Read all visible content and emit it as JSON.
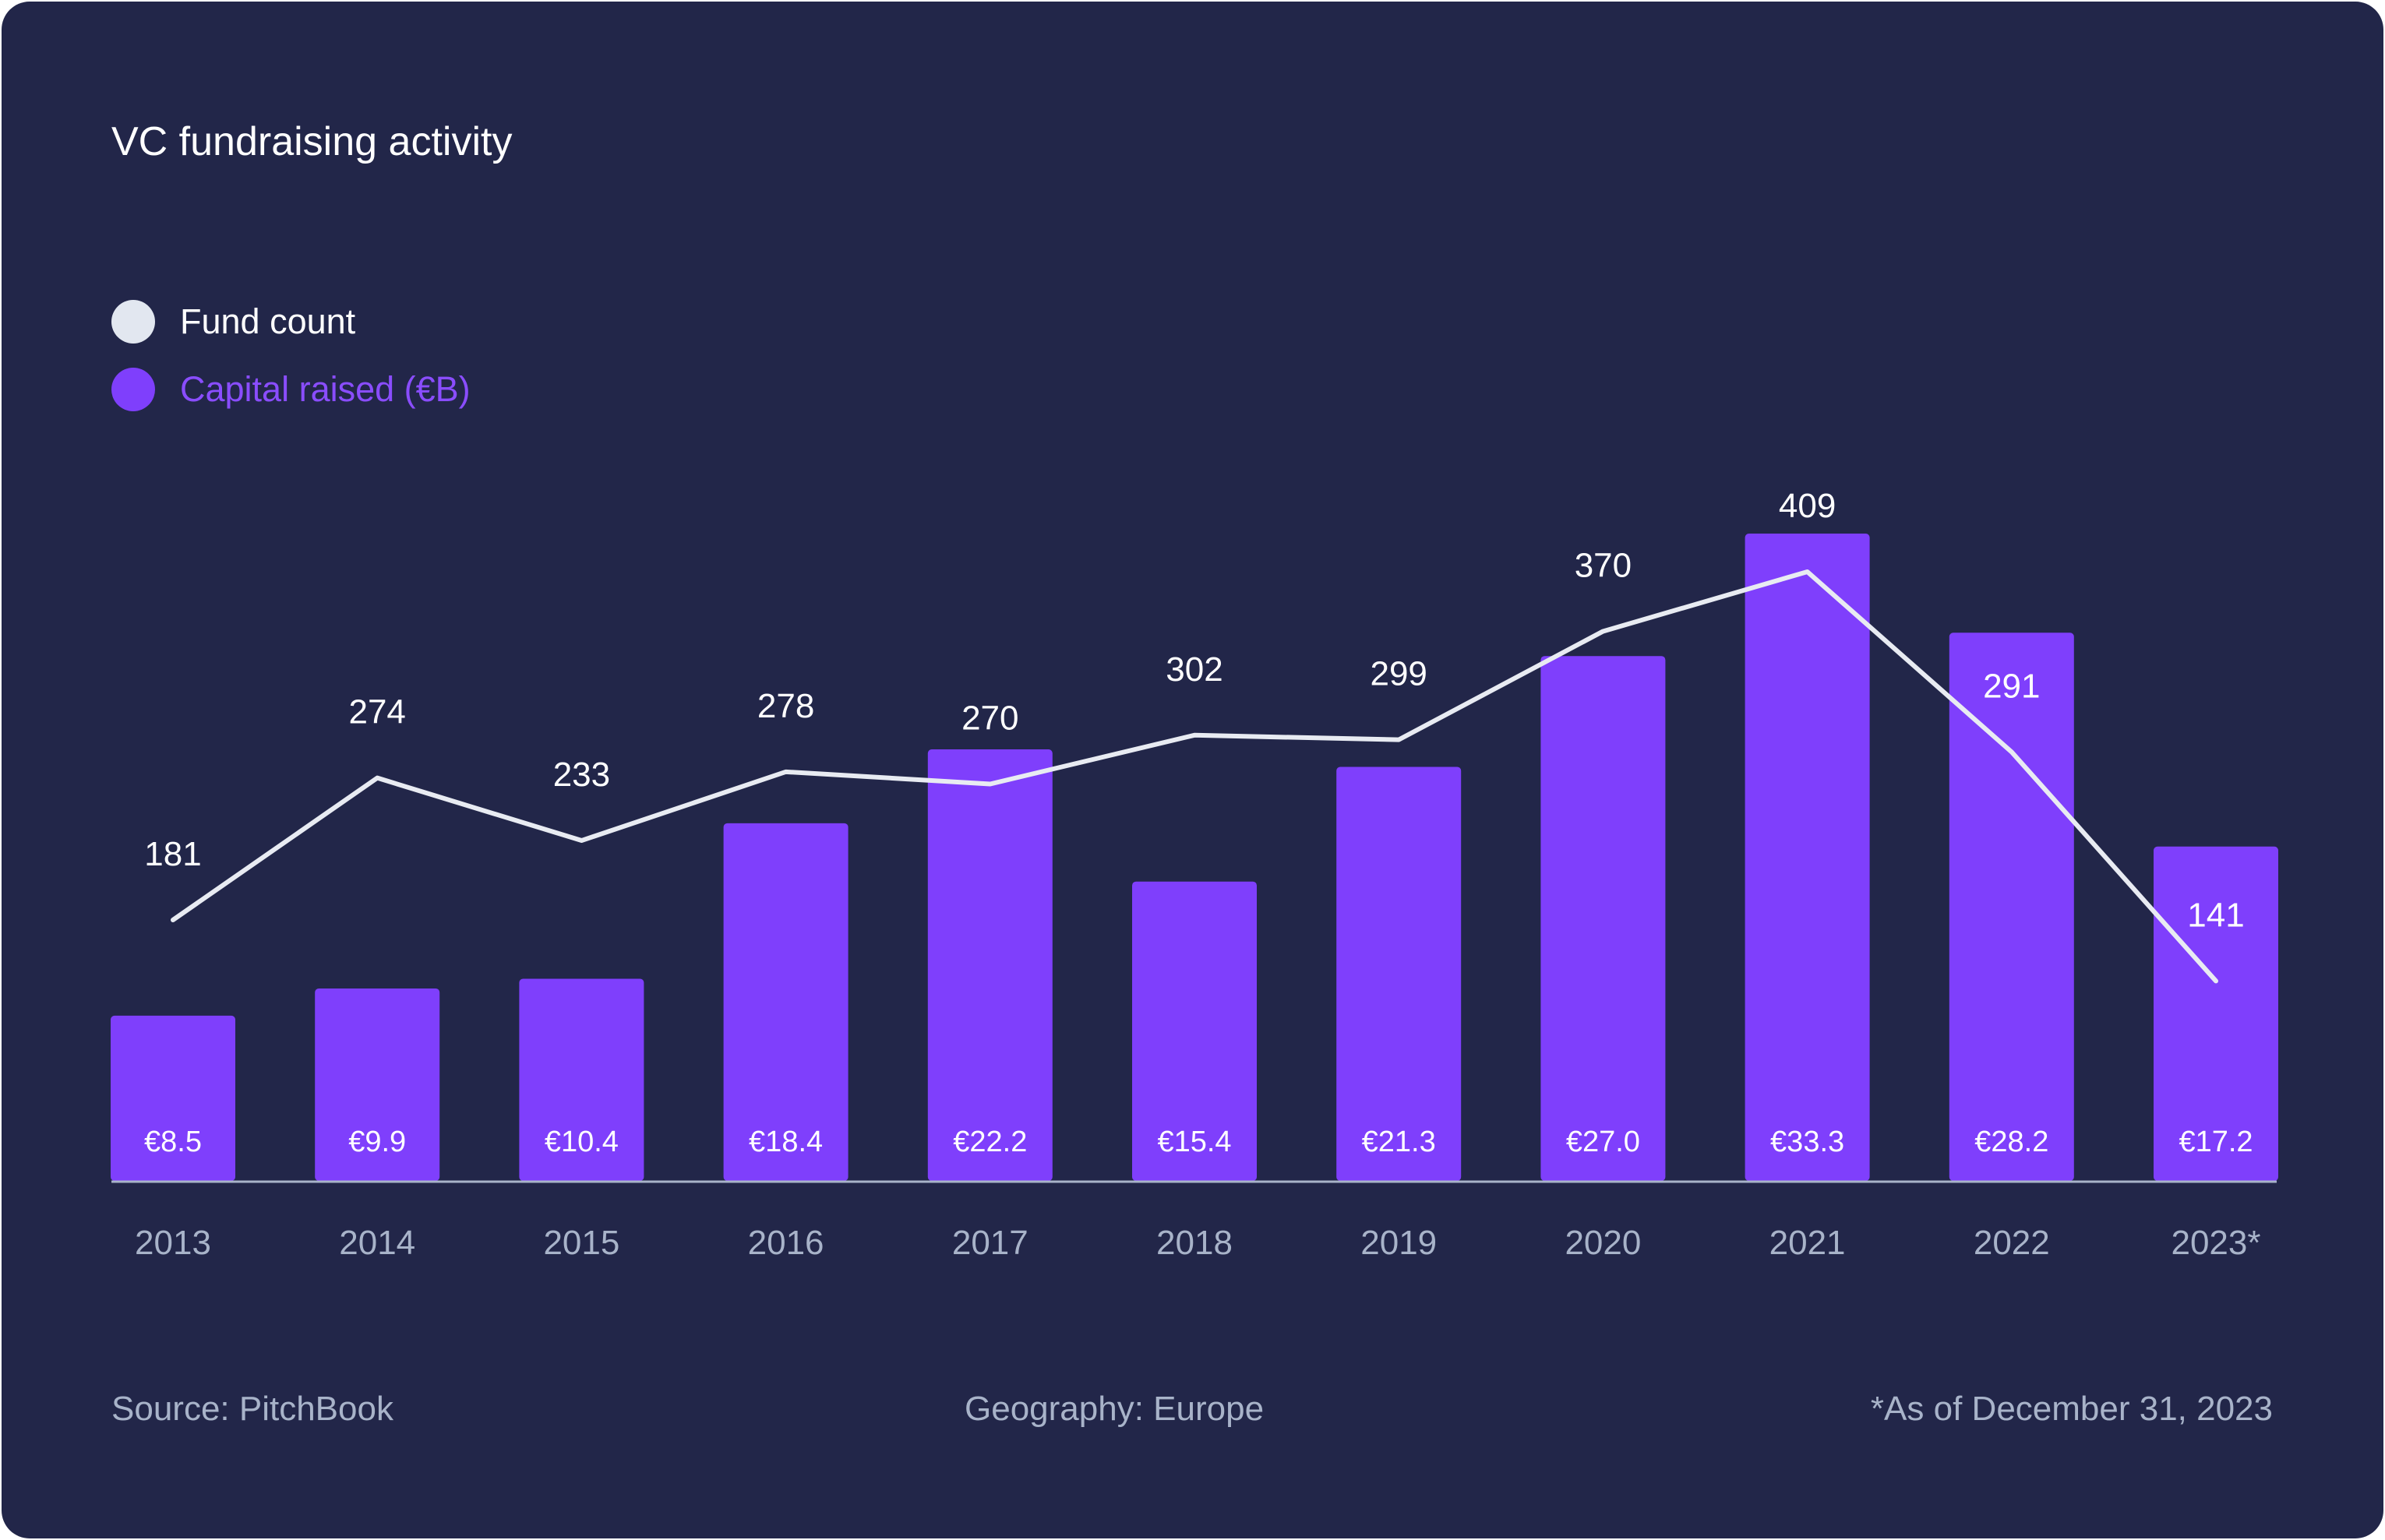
{
  "colors": {
    "background": "#222649",
    "bar": "#7f3ffc",
    "line": "#e8ebf2",
    "axis": "#a8b3c9",
    "footer_text": "#a8b3c9",
    "fund_count_legend": "#e2e7f0",
    "capital_legend": "#7f3ffc"
  },
  "chart_data": {
    "type": "bar",
    "title": "VC fundraising activity",
    "categories": [
      "2013",
      "2014",
      "2015",
      "2016",
      "2017",
      "2018",
      "2019",
      "2020",
      "2021",
      "2022",
      "2023*"
    ],
    "series": [
      {
        "name": "Capital raised (€B)",
        "type": "bar",
        "values": [
          8.5,
          9.9,
          10.4,
          18.4,
          22.2,
          15.4,
          21.3,
          27.0,
          33.3,
          28.2,
          17.2
        ],
        "labels": [
          "€8.5",
          "€9.9",
          "€10.4",
          "€18.4",
          "€22.2",
          "€15.4",
          "€21.3",
          "€27.0",
          "€33.3",
          "€28.2",
          "€17.2"
        ],
        "color": "#7f3ffc"
      },
      {
        "name": "Fund count",
        "type": "line",
        "values": [
          181,
          274,
          233,
          278,
          270,
          302,
          299,
          370,
          409,
          291,
          141
        ],
        "labels": [
          "181",
          "274",
          "233",
          "278",
          "270",
          "302",
          "299",
          "370",
          "409",
          "291",
          "141"
        ],
        "color": "#e8ebf2"
      }
    ],
    "bar_ylim": [
      0,
      36
    ],
    "line_ylim": [
      0,
      500
    ],
    "grid": false,
    "legend_position": "top-left"
  },
  "legend": [
    {
      "label": "Fund count",
      "color": "#e2e7f0"
    },
    {
      "label": "Capital raised (€B)",
      "color": "#7f3ffc"
    }
  ],
  "footer": {
    "source": "Source: PitchBook",
    "geography": "Geography: Europe",
    "note": "*As of December 31, 2023"
  }
}
